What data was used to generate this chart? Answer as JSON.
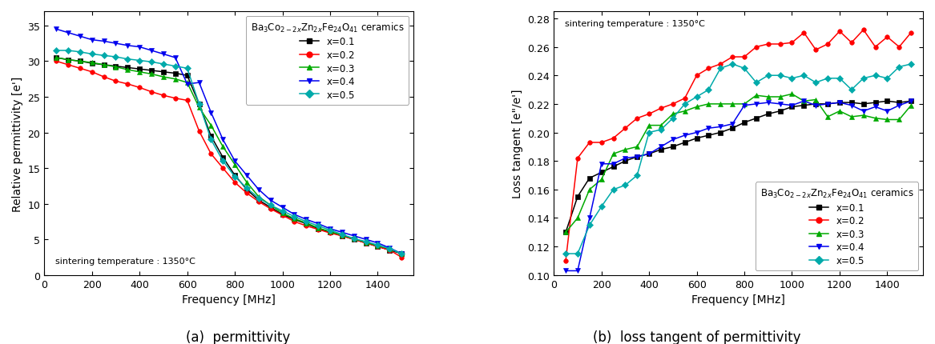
{
  "freq_a": [
    50,
    100,
    150,
    200,
    250,
    300,
    350,
    400,
    450,
    500,
    550,
    600,
    650,
    700,
    750,
    800,
    850,
    900,
    950,
    1000,
    1050,
    1100,
    1150,
    1200,
    1250,
    1300,
    1350,
    1400,
    1450,
    1500
  ],
  "perm_x01": [
    30.5,
    30.2,
    30.0,
    29.7,
    29.5,
    29.3,
    29.1,
    28.9,
    28.7,
    28.5,
    28.3,
    28.0,
    24.0,
    19.5,
    16.5,
    14.0,
    12.0,
    10.5,
    9.5,
    8.5,
    7.8,
    7.2,
    6.5,
    6.0,
    5.5,
    5.0,
    4.5,
    4.0,
    3.5,
    3.0
  ],
  "perm_x02": [
    30.0,
    29.5,
    29.0,
    28.5,
    27.8,
    27.2,
    26.8,
    26.3,
    25.7,
    25.2,
    24.8,
    24.5,
    20.2,
    17.0,
    15.0,
    13.0,
    11.5,
    10.3,
    9.3,
    8.4,
    7.5,
    6.9,
    6.4,
    5.9,
    5.5,
    5.0,
    4.5,
    4.0,
    3.5,
    2.5
  ],
  "perm_x03": [
    30.5,
    30.2,
    30.0,
    29.8,
    29.5,
    29.2,
    28.8,
    28.5,
    28.2,
    27.8,
    27.5,
    27.0,
    23.5,
    21.0,
    18.0,
    15.5,
    13.0,
    11.0,
    9.8,
    8.7,
    7.9,
    7.3,
    6.6,
    6.1,
    5.6,
    5.1,
    4.6,
    4.1,
    3.7,
    3.0
  ],
  "perm_x04": [
    34.5,
    34.0,
    33.5,
    33.0,
    32.8,
    32.5,
    32.2,
    32.0,
    31.5,
    31.0,
    30.5,
    26.8,
    27.0,
    22.8,
    19.0,
    16.0,
    14.0,
    12.0,
    10.5,
    9.5,
    8.5,
    7.8,
    7.2,
    6.5,
    6.0,
    5.5,
    5.0,
    4.5,
    3.8,
    3.0
  ],
  "perm_x05": [
    31.5,
    31.5,
    31.3,
    31.0,
    30.8,
    30.6,
    30.3,
    30.1,
    29.9,
    29.6,
    29.3,
    29.0,
    24.0,
    19.0,
    16.0,
    13.8,
    12.2,
    10.8,
    9.8,
    9.0,
    8.2,
    7.5,
    6.9,
    6.3,
    5.7,
    5.1,
    4.7,
    4.2,
    3.7,
    3.0
  ],
  "freq_b": [
    50,
    100,
    150,
    200,
    250,
    300,
    350,
    400,
    450,
    500,
    550,
    600,
    650,
    700,
    750,
    800,
    850,
    900,
    950,
    1000,
    1050,
    1100,
    1150,
    1200,
    1250,
    1300,
    1350,
    1400,
    1450,
    1500
  ],
  "loss_x01": [
    0.13,
    0.155,
    0.168,
    0.172,
    0.176,
    0.18,
    0.183,
    0.185,
    0.188,
    0.19,
    0.193,
    0.196,
    0.198,
    0.2,
    0.203,
    0.207,
    0.21,
    0.213,
    0.215,
    0.218,
    0.219,
    0.22,
    0.22,
    0.221,
    0.221,
    0.22,
    0.221,
    0.222,
    0.221,
    0.222
  ],
  "loss_x02": [
    0.11,
    0.182,
    0.193,
    0.193,
    0.196,
    0.203,
    0.21,
    0.213,
    0.217,
    0.22,
    0.224,
    0.24,
    0.245,
    0.248,
    0.253,
    0.253,
    0.26,
    0.262,
    0.262,
    0.263,
    0.27,
    0.258,
    0.262,
    0.271,
    0.263,
    0.272,
    0.26,
    0.267,
    0.26,
    0.27
  ],
  "loss_x03": [
    0.13,
    0.14,
    0.16,
    0.167,
    0.185,
    0.188,
    0.19,
    0.205,
    0.205,
    0.213,
    0.215,
    0.218,
    0.22,
    0.22,
    0.22,
    0.22,
    0.226,
    0.225,
    0.225,
    0.227,
    0.222,
    0.223,
    0.211,
    0.215,
    0.211,
    0.212,
    0.21,
    0.209,
    0.209,
    0.219
  ],
  "loss_x04": [
    0.103,
    0.103,
    0.14,
    0.178,
    0.178,
    0.182,
    0.183,
    0.185,
    0.19,
    0.195,
    0.198,
    0.2,
    0.203,
    0.204,
    0.206,
    0.219,
    0.22,
    0.221,
    0.22,
    0.219,
    0.222,
    0.219,
    0.22,
    0.221,
    0.219,
    0.215,
    0.218,
    0.215,
    0.219,
    0.222
  ],
  "loss_x05": [
    0.115,
    0.115,
    0.135,
    0.148,
    0.16,
    0.163,
    0.17,
    0.2,
    0.202,
    0.21,
    0.22,
    0.225,
    0.23,
    0.245,
    0.248,
    0.245,
    0.235,
    0.24,
    0.24,
    0.238,
    0.24,
    0.235,
    0.238,
    0.238,
    0.23,
    0.238,
    0.24,
    0.238,
    0.246,
    0.248
  ],
  "colors": {
    "x01": "#000000",
    "x02": "#ff0000",
    "x03": "#00aa00",
    "x04": "#0000ee",
    "x05": "#00aaaa"
  },
  "markers": {
    "x01": "s",
    "x02": "o",
    "x03": "^",
    "x04": "v",
    "x05": "D"
  },
  "title_a": "(a)  permittivity",
  "title_b": "(b)  loss tangent of permittivity",
  "ylabel_a": "Relative permittivity [e']",
  "ylabel_b": "Loss tangent [e\"/e']",
  "xlabel": "Frequency [MHz]",
  "sintering_text": "sintering temperature : 1350°C",
  "legend_title_a": "Ba$_3$Co$_{2-2x}$Zn$_{2x}$Fe$_{24}$O$_{41}$ ceramics",
  "legend_title_b": "Ba$_3$Co$_{2-2x}$Zn$_{2x}$Fe$_{24}$O$_{41}$ ceramics",
  "legend_labels": [
    "x=0.1",
    "x=0.2",
    "x=0.3",
    "x=0.4",
    "x=0.5"
  ],
  "ylim_a": [
    0,
    37
  ],
  "ylim_b": [
    0.1,
    0.285
  ],
  "yticks_a": [
    0,
    5,
    10,
    15,
    20,
    25,
    30,
    35
  ],
  "yticks_b": [
    0.1,
    0.12,
    0.14,
    0.16,
    0.18,
    0.2,
    0.22,
    0.24,
    0.26,
    0.28
  ],
  "xlim": [
    0,
    1550
  ],
  "xticks": [
    0,
    200,
    400,
    600,
    800,
    1000,
    1200,
    1400
  ]
}
